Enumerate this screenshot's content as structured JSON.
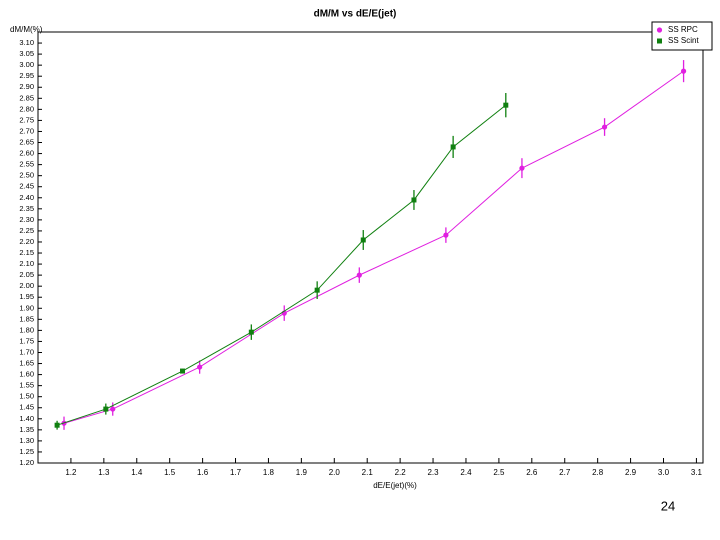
{
  "chart_data": {
    "type": "line",
    "title": "dM/M vs dE/E(jet)",
    "y_label": "dM/M(%)",
    "x_label": "dE/E(jet)(%)",
    "page_number": "24",
    "series": [
      {
        "name": "SS RPC",
        "color": "#e020e0",
        "marker": "circle",
        "x": [
          1.179,
          1.327,
          1.591,
          1.848,
          2.076,
          2.339,
          2.57,
          2.821,
          3.061
        ],
        "values": [
          1.38,
          1.444,
          1.634,
          1.878,
          2.05,
          2.231,
          2.534,
          2.72,
          2.973
        ],
        "errors": [
          0.03,
          0.03,
          0.03,
          0.035,
          0.035,
          0.035,
          0.045,
          0.04,
          0.05
        ]
      },
      {
        "name": "SS Scint",
        "color": "#108010",
        "marker": "square",
        "x": [
          1.158,
          1.306,
          1.539,
          1.748,
          1.948,
          2.088,
          2.242,
          2.361,
          2.521
        ],
        "values": [
          1.371,
          1.444,
          1.616,
          1.792,
          1.982,
          2.209,
          2.39,
          2.63,
          2.819
        ],
        "errors": [
          0.02,
          0.025,
          0.01,
          0.035,
          0.04,
          0.045,
          0.045,
          0.05,
          0.055
        ]
      }
    ],
    "xlim": [
      1.1,
      3.12
    ],
    "ylim": [
      1.2,
      3.15
    ],
    "xticks": [
      1.2,
      1.3,
      1.4,
      1.5,
      1.6,
      1.7,
      1.8,
      1.9,
      {
        "value": 2,
        "label": "2.0"
      },
      2.1,
      2.2,
      2.3,
      2.4,
      2.5,
      2.6,
      2.7,
      2.8,
      2.9,
      {
        "value": 3,
        "label": "3.0"
      },
      3.1
    ],
    "yticks": [
      {
        "value": 1.2,
        "label": "1.20"
      },
      1.25,
      {
        "value": 1.3,
        "label": "1.30"
      },
      1.35,
      {
        "value": 1.4,
        "label": "1.40"
      },
      1.45,
      {
        "value": 1.5,
        "label": "1.50"
      },
      1.55,
      {
        "value": 1.6,
        "label": "1.60"
      },
      1.65,
      {
        "value": 1.7,
        "label": "1.70"
      },
      1.75,
      {
        "value": 1.8,
        "label": "1.80"
      },
      1.85,
      {
        "value": 1.9,
        "label": "1.90"
      },
      1.95,
      {
        "value": 2,
        "label": "2.00"
      },
      2.05,
      {
        "value": 2.1,
        "label": "2.10"
      },
      2.15,
      {
        "value": 2.2,
        "label": "2.20"
      },
      2.25,
      {
        "value": 2.3,
        "label": "2.30"
      },
      2.35,
      {
        "value": 2.4,
        "label": "2.40"
      },
      2.45,
      {
        "value": 2.5,
        "label": "2.50"
      },
      2.55,
      {
        "value": 2.6,
        "label": "2.60"
      },
      2.65,
      {
        "value": 2.7,
        "label": "2.70"
      },
      2.75,
      {
        "value": 2.8,
        "label": "2.80"
      },
      2.85,
      {
        "value": 2.9,
        "label": "2.90"
      },
      2.95,
      {
        "value": 3,
        "label": "3.00"
      },
      3.05,
      {
        "value": 3.1,
        "label": "3.10"
      }
    ],
    "legend": "top-right",
    "grid": false
  }
}
